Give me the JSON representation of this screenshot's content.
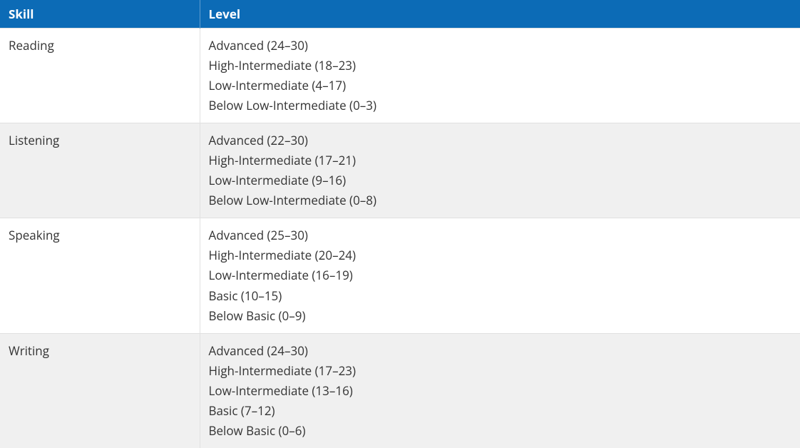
{
  "table": {
    "header_bg": "#0c6bb6",
    "header_fg": "#ffffff",
    "row_alt_bg": "#f0f0f0",
    "border_color": "#e0e0e0",
    "columns": [
      "Skill",
      "Level"
    ],
    "rows": [
      {
        "skill": "Reading",
        "levels": [
          "Advanced (24–30)",
          "High-Intermediate (18–23)",
          "Low-Intermediate (4–17)",
          "Below Low-Intermediate (0–3)"
        ]
      },
      {
        "skill": "Listening",
        "levels": [
          "Advanced (22–30)",
          "High-Intermediate (17–21)",
          "Low-Intermediate (9–16)",
          "Below Low-Intermediate (0–8)"
        ]
      },
      {
        "skill": "Speaking",
        "levels": [
          "Advanced (25–30)",
          "High-Intermediate (20–24)",
          "Low-Intermediate (16–19)",
          "Basic (10–15)",
          "Below Basic (0–9)"
        ]
      },
      {
        "skill": "Writing",
        "levels": [
          "Advanced (24–30)",
          "High-Intermediate (17–23)",
          "Low-Intermediate (13–16)",
          "Basic (7–12)",
          "Below Basic (0–6)"
        ]
      }
    ]
  }
}
